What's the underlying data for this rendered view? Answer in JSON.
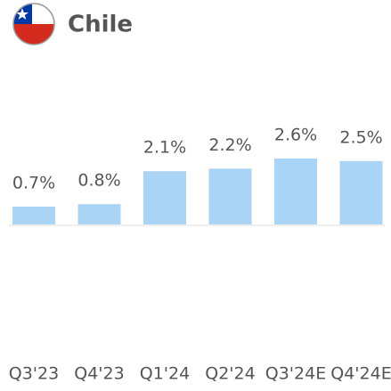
{
  "chart_data": {
    "type": "bar",
    "title": "Chile",
    "categories": [
      "Q3'23",
      "Q4'23",
      "Q1'24",
      "Q2'24",
      "Q3'24E",
      "Q4'24E"
    ],
    "values": [
      0.7,
      0.8,
      2.1,
      2.2,
      2.6,
      2.5
    ],
    "value_labels": [
      "0.7%",
      "0.8%",
      "2.1%",
      "2.2%",
      "2.6%",
      "2.5%"
    ],
    "color": "#aad4f5"
  }
}
